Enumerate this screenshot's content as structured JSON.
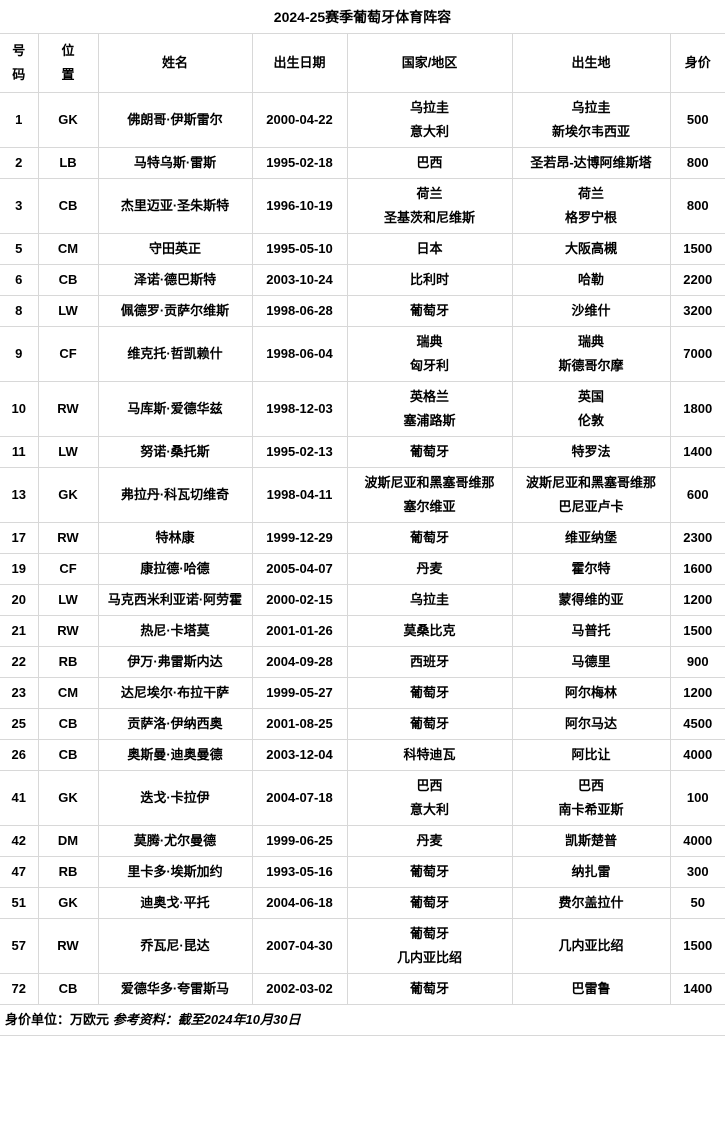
{
  "title": "2024-25赛季葡萄牙体育阵容",
  "table": {
    "headers": [
      "号\n码",
      "位\n置",
      "姓名",
      "出生日期",
      "国家/地区",
      "出生地",
      "身价"
    ],
    "rows": [
      {
        "number": "1",
        "position": "GK",
        "name": "佛朗哥·伊斯雷尔",
        "birth_date": "2000-04-22",
        "country": [
          "乌拉圭",
          "意大利"
        ],
        "birthplace": [
          "乌拉圭",
          "新埃尔韦西亚"
        ],
        "value": "500"
      },
      {
        "number": "2",
        "position": "LB",
        "name": "马特乌斯·雷斯",
        "birth_date": "1995-02-18",
        "country": [
          "巴西"
        ],
        "birthplace": [
          "圣若昂-达博阿维斯塔"
        ],
        "value": "800"
      },
      {
        "number": "3",
        "position": "CB",
        "name": "杰里迈亚·圣朱斯特",
        "birth_date": "1996-10-19",
        "country": [
          "荷兰",
          "圣基茨和尼维斯"
        ],
        "birthplace": [
          "荷兰",
          "格罗宁根"
        ],
        "value": "800"
      },
      {
        "number": "5",
        "position": "CM",
        "name": "守田英正",
        "birth_date": "1995-05-10",
        "country": [
          "日本"
        ],
        "birthplace": [
          "大阪高槻"
        ],
        "value": "1500"
      },
      {
        "number": "6",
        "position": "CB",
        "name": "泽诺·德巴斯特",
        "birth_date": "2003-10-24",
        "country": [
          "比利时"
        ],
        "birthplace": [
          "哈勒"
        ],
        "value": "2200"
      },
      {
        "number": "8",
        "position": "LW",
        "name": "佩德罗·贡萨尔维斯",
        "birth_date": "1998-06-28",
        "country": [
          "葡萄牙"
        ],
        "birthplace": [
          "沙维什"
        ],
        "value": "3200"
      },
      {
        "number": "9",
        "position": "CF",
        "name": "维克托·哲凯赖什",
        "birth_date": "1998-06-04",
        "country": [
          "瑞典",
          "匈牙利"
        ],
        "birthplace": [
          "瑞典",
          "斯德哥尔摩"
        ],
        "value": "7000"
      },
      {
        "number": "10",
        "position": "RW",
        "name": "马库斯·爱德华兹",
        "birth_date": "1998-12-03",
        "country": [
          "英格兰",
          "塞浦路斯"
        ],
        "birthplace": [
          "英国",
          "伦敦"
        ],
        "value": "1800"
      },
      {
        "number": "11",
        "position": "LW",
        "name": "努诺·桑托斯",
        "birth_date": "1995-02-13",
        "country": [
          "葡萄牙"
        ],
        "birthplace": [
          "特罗法"
        ],
        "value": "1400"
      },
      {
        "number": "13",
        "position": "GK",
        "name": "弗拉丹·科瓦切维奇",
        "birth_date": "1998-04-11",
        "country": [
          "波斯尼亚和黑塞哥维那",
          "塞尔维亚"
        ],
        "birthplace": [
          "波斯尼亚和黑塞哥维那",
          "巴尼亚卢卡"
        ],
        "value": "600"
      },
      {
        "number": "17",
        "position": "RW",
        "name": "特林康",
        "birth_date": "1999-12-29",
        "country": [
          "葡萄牙"
        ],
        "birthplace": [
          "维亚纳堡"
        ],
        "value": "2300"
      },
      {
        "number": "19",
        "position": "CF",
        "name": "康拉德·哈德",
        "birth_date": "2005-04-07",
        "country": [
          "丹麦"
        ],
        "birthplace": [
          "霍尔特"
        ],
        "value": "1600"
      },
      {
        "number": "20",
        "position": "LW",
        "name": "马克西米利亚诺·阿劳霍",
        "birth_date": "2000-02-15",
        "country": [
          "乌拉圭"
        ],
        "birthplace": [
          "蒙得维的亚"
        ],
        "value": "1200"
      },
      {
        "number": "21",
        "position": "RW",
        "name": "热尼·卡塔莫",
        "birth_date": "2001-01-26",
        "country": [
          "莫桑比克"
        ],
        "birthplace": [
          "马普托"
        ],
        "value": "1500"
      },
      {
        "number": "22",
        "position": "RB",
        "name": "伊万·弗雷斯内达",
        "birth_date": "2004-09-28",
        "country": [
          "西班牙"
        ],
        "birthplace": [
          "马德里"
        ],
        "value": "900"
      },
      {
        "number": "23",
        "position": "CM",
        "name": "达尼埃尔·布拉干萨",
        "birth_date": "1999-05-27",
        "country": [
          "葡萄牙"
        ],
        "birthplace": [
          "阿尔梅林"
        ],
        "value": "1200"
      },
      {
        "number": "25",
        "position": "CB",
        "name": "贡萨洛·伊纳西奥",
        "birth_date": "2001-08-25",
        "country": [
          "葡萄牙"
        ],
        "birthplace": [
          "阿尔马达"
        ],
        "value": "4500"
      },
      {
        "number": "26",
        "position": "CB",
        "name": "奥斯曼·迪奥曼德",
        "birth_date": "2003-12-04",
        "country": [
          "科特迪瓦"
        ],
        "birthplace": [
          "阿比让"
        ],
        "value": "4000"
      },
      {
        "number": "41",
        "position": "GK",
        "name": "迭戈·卡拉伊",
        "birth_date": "2004-07-18",
        "country": [
          "巴西",
          "意大利"
        ],
        "birthplace": [
          "巴西",
          "南卡希亚斯"
        ],
        "value": "100"
      },
      {
        "number": "42",
        "position": "DM",
        "name": "莫腾·尤尔曼德",
        "birth_date": "1999-06-25",
        "country": [
          "丹麦"
        ],
        "birthplace": [
          "凯斯楚普"
        ],
        "value": "4000"
      },
      {
        "number": "47",
        "position": "RB",
        "name": "里卡多·埃斯加约",
        "birth_date": "1993-05-16",
        "country": [
          "葡萄牙"
        ],
        "birthplace": [
          "纳扎雷"
        ],
        "value": "300"
      },
      {
        "number": "51",
        "position": "GK",
        "name": "迪奥戈·平托",
        "birth_date": "2004-06-18",
        "country": [
          "葡萄牙"
        ],
        "birthplace": [
          "费尔盖拉什"
        ],
        "value": "50"
      },
      {
        "number": "57",
        "position": "RW",
        "name": "乔瓦尼·昆达",
        "birth_date": "2007-04-30",
        "country": [
          "葡萄牙",
          "几内亚比绍"
        ],
        "birthplace": [
          "几内亚比绍"
        ],
        "value": "1500"
      },
      {
        "number": "72",
        "position": "CB",
        "name": "爱德华多·夸雷斯马",
        "birth_date": "2002-03-02",
        "country": [
          "葡萄牙"
        ],
        "birthplace": [
          "巴雷鲁"
        ],
        "value": "1400"
      }
    ]
  },
  "footer": {
    "unit_note": "身价单位：万欧元",
    "ref_note": "参考资料：截至2024年10月30日"
  }
}
